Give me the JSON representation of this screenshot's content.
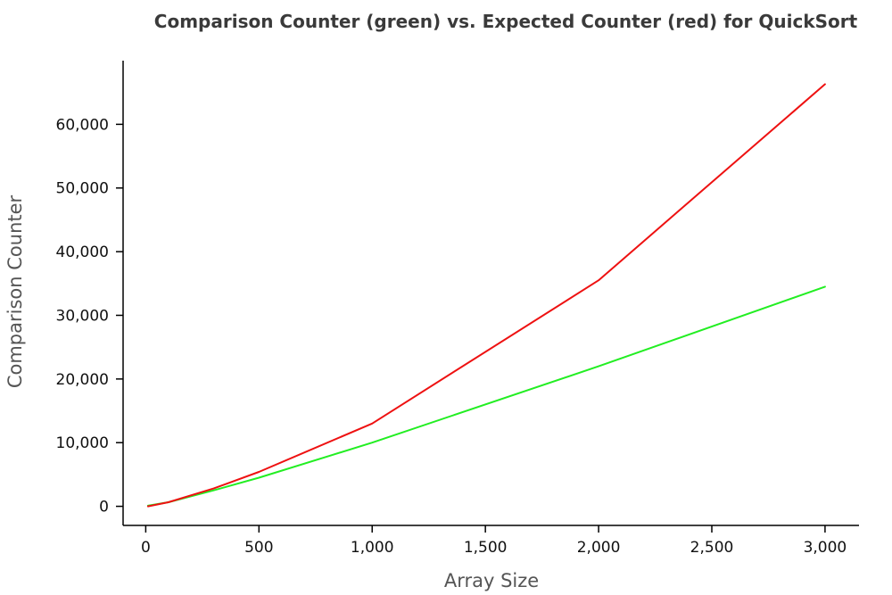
{
  "chart_data": {
    "type": "line",
    "title": "Comparison Counter (green) vs. Expected Counter (red) for QuickSort",
    "xlabel": "Array Size",
    "ylabel": "Comparison Counter",
    "xlim": [
      -100,
      3150
    ],
    "ylim": [
      -3000,
      70000
    ],
    "x_ticks": [
      0,
      500,
      1000,
      1500,
      2000,
      2500,
      3000
    ],
    "y_ticks": [
      0,
      10000,
      20000,
      30000,
      40000,
      50000,
      60000
    ],
    "grid": false,
    "series": [
      {
        "color": "#22ee22",
        "x": [
          10,
          100,
          300,
          500,
          1000,
          2000,
          3000
        ],
        "y": [
          100,
          650,
          2500,
          4500,
          10000,
          22000,
          34500
        ]
      },
      {
        "color": "#ee1111",
        "x": [
          10,
          100,
          300,
          500,
          1000,
          2000,
          3000
        ],
        "y": [
          0,
          650,
          2800,
          5400,
          13000,
          35500,
          66300
        ]
      }
    ]
  }
}
